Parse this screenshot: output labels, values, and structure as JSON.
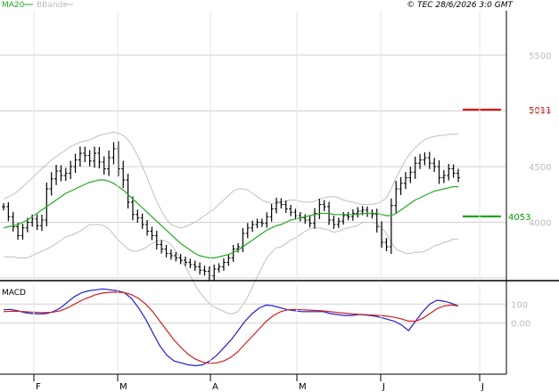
{
  "header": {
    "legend": [
      {
        "label": "MA20",
        "color": "#22aa22"
      },
      {
        "label": "BBands",
        "color": "#bbbbbb"
      }
    ],
    "copyright": "© TEC 28/6/2026 3:0 GMT"
  },
  "colors": {
    "ma": "#22aa22",
    "bands": "#c0c0c0",
    "bars": "#000000",
    "resistance": "#e00000",
    "support": "#00a000",
    "macd_line": "#1f1fd0",
    "signal_line": "#d01f1f",
    "grid": "#d0d0d0",
    "axis": "#000000"
  },
  "chart_data": [
    {
      "type": "ohlc",
      "ylim": [
        3500,
        5900
      ],
      "y_ticks": [
        "5500",
        "5000",
        "4500",
        "4000"
      ],
      "x_ticks": [
        "F",
        "M",
        "A",
        "M",
        "J",
        "J"
      ],
      "levels": [
        {
          "label": "5011",
          "value": 5011,
          "color": "#e00000"
        },
        {
          "label": "4053",
          "value": 4053,
          "color": "#00a000"
        }
      ],
      "close": [
        4140,
        4050,
        3960,
        3880,
        3950,
        4000,
        4030,
        3970,
        4020,
        4300,
        4390,
        4460,
        4420,
        4440,
        4500,
        4560,
        4620,
        4600,
        4550,
        4620,
        4540,
        4480,
        4580,
        4660,
        4480,
        4380,
        4180,
        4070,
        4040,
        3980,
        3920,
        3880,
        3800,
        3760,
        3720,
        3700,
        3680,
        3660,
        3640,
        3620,
        3600,
        3570,
        3560,
        3520,
        3580,
        3600,
        3640,
        3680,
        3760,
        3780,
        3900,
        3950,
        3980,
        4000,
        3990,
        4050,
        4120,
        4180,
        4160,
        4120,
        4090,
        4060,
        4040,
        4020,
        3990,
        4080,
        4160,
        4140,
        4020,
        3980,
        4010,
        4060,
        4050,
        4080,
        4100,
        4110,
        4080,
        4070,
        3960,
        3820,
        3780,
        4150,
        4300,
        4350,
        4400,
        4450,
        4530,
        4560,
        4580,
        4530,
        4500,
        4400,
        4420,
        4480,
        4440,
        4400
      ],
      "range": [
        80,
        100,
        110,
        90,
        90,
        100,
        100,
        100,
        120,
        140,
        150,
        140,
        130,
        120,
        130,
        140,
        150,
        150,
        120,
        150,
        140,
        130,
        160,
        150,
        170,
        180,
        140,
        130,
        110,
        100,
        100,
        100,
        110,
        100,
        90,
        90,
        80,
        90,
        80,
        80,
        90,
        100,
        100,
        110,
        100,
        80,
        90,
        80,
        90,
        80,
        120,
        110,
        90,
        80,
        80,
        100,
        110,
        100,
        90,
        90,
        90,
        80,
        80,
        80,
        90,
        120,
        130,
        100,
        110,
        100,
        80,
        80,
        80,
        90,
        90,
        90,
        80,
        90,
        130,
        120,
        100,
        160,
        180,
        140,
        130,
        120,
        150,
        130,
        120,
        130,
        120,
        140,
        120,
        110,
        100,
        100
      ],
      "ma20": [
        3950,
        3960,
        3970,
        3980,
        4000,
        4020,
        4050,
        4080,
        4110,
        4140,
        4170,
        4200,
        4230,
        4260,
        4280,
        4300,
        4320,
        4340,
        4360,
        4370,
        4380,
        4380,
        4370,
        4350,
        4320,
        4290,
        4250,
        4210,
        4170,
        4130,
        4090,
        4050,
        4010,
        3970,
        3930,
        3890,
        3850,
        3810,
        3780,
        3750,
        3720,
        3700,
        3690,
        3680,
        3680,
        3690,
        3700,
        3710,
        3730,
        3750,
        3780,
        3810,
        3840,
        3870,
        3900,
        3930,
        3950,
        3970,
        3980,
        4000,
        4020,
        4030,
        4040,
        4050,
        4060,
        4070,
        4080,
        4080,
        4080,
        4070,
        4070,
        4070,
        4070,
        4070,
        4070,
        4080,
        4080,
        4080,
        4080,
        4070,
        4060,
        4060,
        4080,
        4110,
        4140,
        4170,
        4200,
        4220,
        4240,
        4260,
        4280,
        4290,
        4300,
        4310,
        4320,
        4320
      ],
      "bb_upper": [
        4210,
        4230,
        4250,
        4280,
        4320,
        4360,
        4400,
        4440,
        4480,
        4520,
        4560,
        4590,
        4620,
        4650,
        4680,
        4700,
        4720,
        4730,
        4740,
        4760,
        4780,
        4790,
        4800,
        4810,
        4800,
        4780,
        4740,
        4680,
        4600,
        4500,
        4400,
        4290,
        4190,
        4100,
        4030,
        3980,
        3960,
        3950,
        3960,
        3980,
        4000,
        4030,
        4060,
        4090,
        4120,
        4160,
        4200,
        4240,
        4280,
        4300,
        4300,
        4290,
        4260,
        4230,
        4200,
        4180,
        4170,
        4170,
        4180,
        4190,
        4200,
        4200,
        4190,
        4180,
        4180,
        4190,
        4210,
        4220,
        4230,
        4230,
        4220,
        4200,
        4190,
        4180,
        4170,
        4160,
        4160,
        4160,
        4170,
        4190,
        4220,
        4300,
        4400,
        4480,
        4560,
        4620,
        4670,
        4710,
        4740,
        4760,
        4770,
        4780,
        4780,
        4790,
        4790,
        4790
      ],
      "bb_lower": [
        3690,
        3690,
        3690,
        3680,
        3680,
        3680,
        3700,
        3720,
        3740,
        3760,
        3780,
        3810,
        3840,
        3870,
        3880,
        3900,
        3920,
        3950,
        3980,
        3980,
        3980,
        3970,
        3940,
        3890,
        3840,
        3800,
        3760,
        3740,
        3740,
        3760,
        3780,
        3810,
        3830,
        3840,
        3830,
        3800,
        3740,
        3670,
        3600,
        3520,
        3440,
        3370,
        3320,
        3270,
        3240,
        3220,
        3200,
        3180,
        3180,
        3200,
        3260,
        3330,
        3420,
        3510,
        3600,
        3680,
        3730,
        3770,
        3780,
        3810,
        3840,
        3860,
        3890,
        3920,
        3940,
        3950,
        3950,
        3940,
        3930,
        3910,
        3920,
        3940,
        3950,
        3960,
        3970,
        4000,
        4000,
        4000,
        3990,
        3950,
        3900,
        3820,
        3760,
        3740,
        3720,
        3720,
        3730,
        3730,
        3740,
        3760,
        3790,
        3800,
        3820,
        3830,
        3850,
        3850
      ]
    },
    {
      "type": "line",
      "title": "MACD",
      "ylim": [
        -260,
        200
      ],
      "y_ticks": [
        {
          "label": "100",
          "value": 100
        },
        {
          "label": "0.00",
          "value": 0
        }
      ],
      "series": [
        {
          "name": "MACD",
          "color": "#1f1fd0",
          "values": [
            70,
            72,
            65,
            55,
            50,
            48,
            50,
            60,
            80,
            110,
            140,
            160,
            170,
            175,
            180,
            175,
            170,
            160,
            130,
            80,
            20,
            -50,
            -120,
            -170,
            -200,
            -210,
            -220,
            -225,
            -220,
            -200,
            -170,
            -130,
            -90,
            -40,
            10,
            50,
            80,
            95,
            90,
            80,
            70,
            65,
            60,
            60,
            60,
            60,
            50,
            45,
            40,
            40,
            45,
            42,
            38,
            30,
            20,
            10,
            -10,
            -40,
            10,
            60,
            100,
            120,
            115,
            105,
            90
          ]
        },
        {
          "name": "Signal",
          "color": "#d01f1f",
          "values": [
            60,
            62,
            62,
            60,
            58,
            56,
            55,
            58,
            65,
            80,
            100,
            120,
            135,
            150,
            158,
            162,
            163,
            160,
            150,
            130,
            100,
            60,
            10,
            -40,
            -90,
            -130,
            -165,
            -190,
            -205,
            -212,
            -210,
            -200,
            -180,
            -150,
            -110,
            -70,
            -30,
            10,
            40,
            60,
            70,
            72,
            70,
            68,
            66,
            64,
            60,
            56,
            52,
            48,
            46,
            44,
            42,
            40,
            36,
            30,
            22,
            10,
            10,
            25,
            50,
            75,
            90,
            95,
            90
          ]
        }
      ]
    }
  ]
}
